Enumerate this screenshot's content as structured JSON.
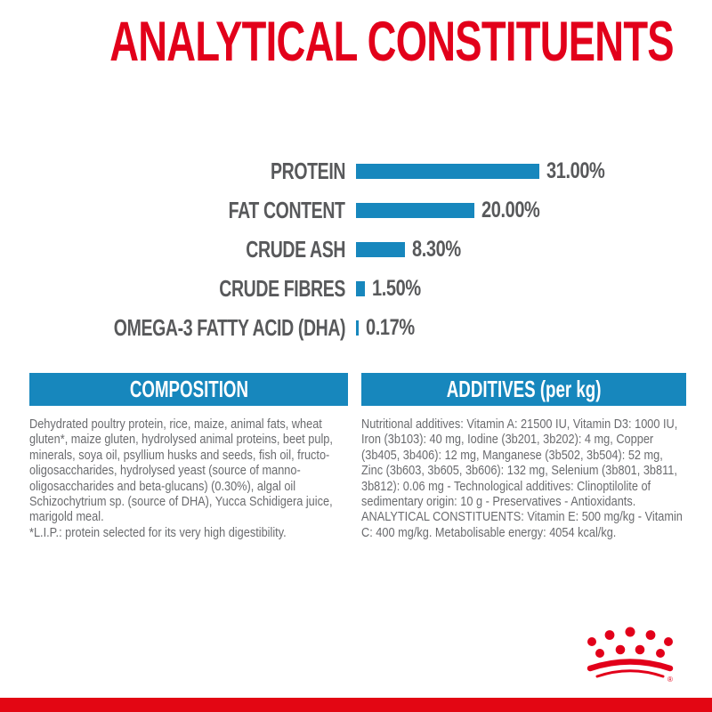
{
  "page": {
    "title": "ANALYTICAL CONSTITUENTS"
  },
  "colors": {
    "brand_red": "#e2001a",
    "footer_red": "#e30613",
    "bar_blue": "#1787bd",
    "header_blue": "#1787bd",
    "label_gray": "#58595b",
    "body_gray": "#6a6b6e"
  },
  "chart_data": {
    "type": "bar",
    "orientation": "horizontal",
    "title": "ANALYTICAL CONSTITUENTS",
    "categories": [
      "PROTEIN",
      "FAT CONTENT",
      "CRUDE ASH",
      "CRUDE FIBRES",
      "OMEGA-3 FATTY ACID (DHA)"
    ],
    "values": [
      31.0,
      20.0,
      8.3,
      1.5,
      0.17
    ],
    "value_labels": [
      "31.00%",
      "20.00%",
      "8.30%",
      "1.50%",
      "0.17%"
    ],
    "unit": "%",
    "xlim": [
      0,
      31
    ],
    "grid": false,
    "legend": false,
    "bar_color": "#1787bd"
  },
  "composition": {
    "header": "COMPOSITION",
    "paragraphs": [
      "Dehydrated poultry protein, rice, maize, animal fats, wheat gluten*, maize gluten, hydrolysed animal proteins, beet pulp, minerals, soya oil, psyllium husks and seeds, fish oil, fructo-oligosaccharides, hydrolysed yeast (source of manno-oligosaccharides and beta-glucans) (0.30%), algal oil Schizochytrium sp. (source of DHA), Yucca Schidigera juice, marigold meal.",
      "*L.I.P.: protein selected for its very high digestibility."
    ]
  },
  "additives": {
    "header": "ADDITIVES (per kg)",
    "paragraphs": [
      "Nutritional additives: Vitamin A: 21500 IU, Vitamin D3: 1000 IU, Iron (3b103): 40 mg, Iodine (3b201, 3b202): 4 mg, Copper (3b405, 3b406): 12 mg, Manganese (3b502, 3b504): 52 mg, Zinc (3b603, 3b605, 3b606): 132 mg, Selenium (3b801, 3b811, 3b812): 0.06 mg - Technological additives: Clinoptilolite of sedimentary origin: 10 g - Preservatives - Antioxidants.",
      "ANALYTICAL CONSTITUENTS: Vitamin E: 500 mg/kg - Vitamin C: 400 mg/kg. Metabolisable energy: 4054 kcal/kg."
    ]
  },
  "logo": {
    "name": "royal-canin-crown",
    "registered_mark": "®"
  }
}
